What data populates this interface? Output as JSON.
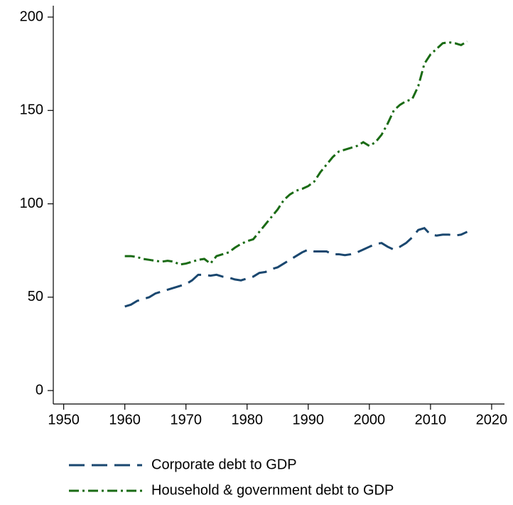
{
  "chart_data": {
    "type": "line",
    "x": [
      1960,
      1961,
      1962,
      1963,
      1964,
      1965,
      1966,
      1967,
      1968,
      1969,
      1970,
      1971,
      1972,
      1973,
      1974,
      1975,
      1976,
      1977,
      1978,
      1979,
      1980,
      1981,
      1982,
      1983,
      1984,
      1985,
      1986,
      1987,
      1988,
      1989,
      1990,
      1991,
      1992,
      1993,
      1994,
      1995,
      1996,
      1997,
      1998,
      1999,
      2000,
      2001,
      2002,
      2003,
      2004,
      2005,
      2006,
      2007,
      2008,
      2009,
      2010,
      2011,
      2012,
      2013,
      2014,
      2015,
      2016
    ],
    "series": [
      {
        "name": "Corporate debt to GDP",
        "color": "#1a476f",
        "dash": "22 10",
        "values": [
          45,
          46,
          48,
          49,
          50,
          52,
          53,
          54,
          55,
          56,
          57,
          59,
          62,
          62,
          61.5,
          62,
          61,
          60.5,
          59.5,
          59,
          60,
          61,
          63,
          63.5,
          65,
          66,
          68,
          70,
          72,
          74,
          75.5,
          74.5,
          74.5,
          74.5,
          73,
          73,
          72.5,
          73,
          74,
          75.5,
          77,
          78.5,
          79,
          77,
          75.5,
          77,
          79,
          82,
          86,
          87,
          83.5,
          83,
          83.5,
          83.5,
          83,
          83.5,
          85
        ]
      },
      {
        "name": "Household & government debt to GDP",
        "color": "#1a6b14",
        "dash": "14 5 3 5",
        "values": [
          72,
          72,
          71.5,
          70.5,
          70,
          69.5,
          69,
          69.5,
          69,
          67.5,
          68,
          69,
          70,
          70.5,
          68,
          72,
          73,
          74,
          76.5,
          78.5,
          80,
          81,
          85,
          89,
          93,
          97,
          102,
          105,
          107,
          108,
          109.5,
          112,
          117,
          121,
          125,
          128,
          129,
          130,
          131,
          133,
          131,
          133,
          137,
          143,
          150,
          153,
          155,
          156,
          163,
          175,
          180,
          183,
          186,
          186.5,
          186,
          185,
          187
        ]
      }
    ],
    "xlim": [
      1948.3,
      2022.1
    ],
    "xticks": [
      1950,
      1960,
      1970,
      1980,
      1990,
      2000,
      2010,
      2020
    ],
    "ylim": [
      -7.2,
      206.1
    ],
    "yticks": [
      0,
      50,
      100,
      150,
      200
    ],
    "grid": false,
    "legend": "bottom"
  }
}
